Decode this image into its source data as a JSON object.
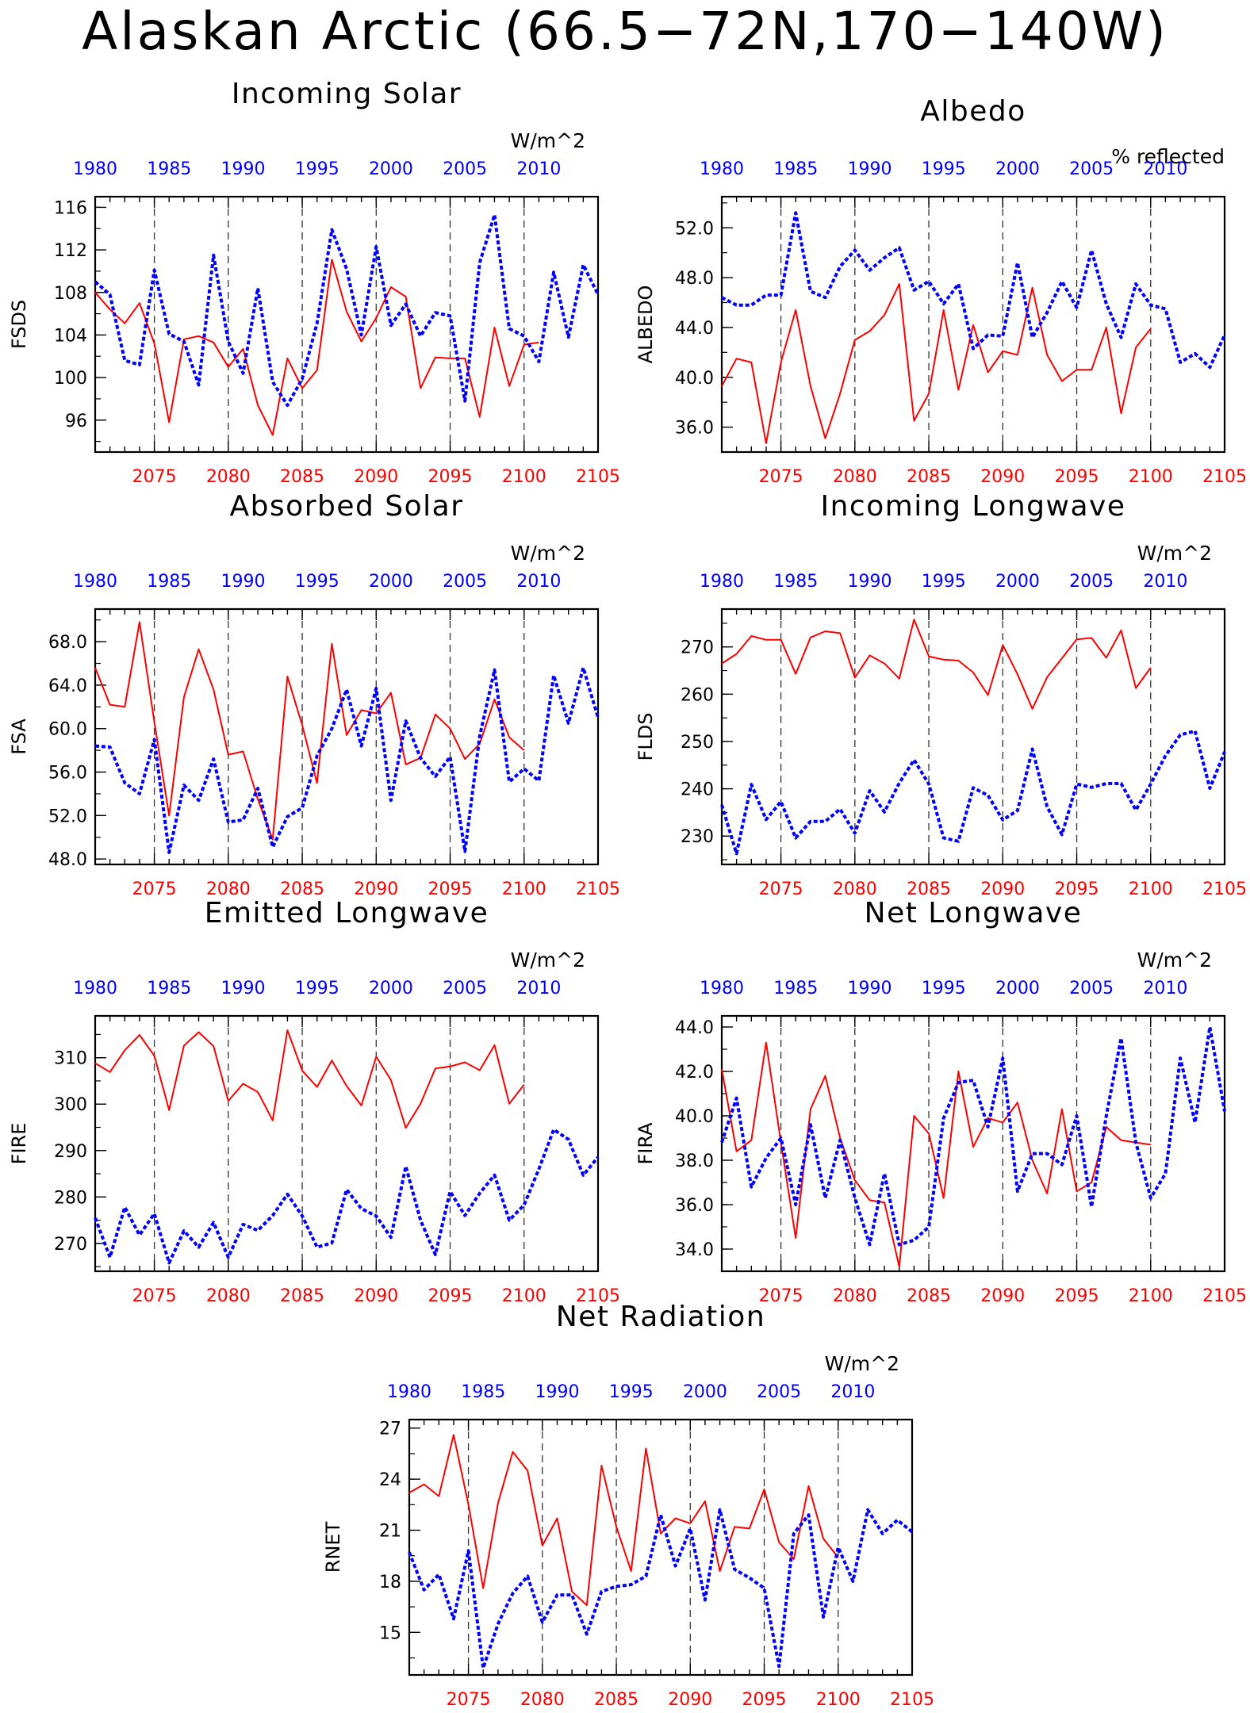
{
  "figure_title": "Alaskan Arctic (66.5−72N,170−140W)",
  "colors": {
    "future": "#ff0000",
    "historical": "#0000ff",
    "frame": "#000000"
  },
  "chart_data": [
    {
      "type": "line",
      "title": "Incoming Solar",
      "ylabel": "FSDS",
      "units": "W/m^2",
      "ylim": [
        93,
        117
      ],
      "yticks": [
        96,
        100,
        104,
        108,
        112,
        116
      ],
      "ytick_labels": [
        "96",
        "100",
        "104",
        "108",
        "112",
        "116"
      ],
      "x_bottom": {
        "start": 2071,
        "end": 2105,
        "ticks": [
          "2075",
          "2080",
          "2085",
          "2090",
          "2095",
          "2100",
          "2105"
        ]
      },
      "x_top": {
        "ticks": [
          "1980",
          "1985",
          "1990",
          "1995",
          "2000",
          "2005",
          "2010"
        ]
      },
      "series": [
        {
          "values": [
            108.0,
            106.4,
            105.1,
            107.0,
            103.2,
            95.8,
            103.6,
            103.9,
            103.3,
            101.0,
            102.7,
            97.4,
            94.6,
            101.8,
            99.0,
            100.7,
            111.1,
            106.2,
            103.4,
            105.6,
            108.5,
            107.6,
            99.0,
            101.9,
            101.8,
            101.8,
            96.3,
            104.7,
            99.2,
            103.1,
            103.3
          ]
        },
        {
          "values": [
            109.0,
            107.8,
            101.6,
            101.2,
            110.1,
            104.1,
            103.4,
            99.3,
            111.5,
            103.4,
            100.4,
            108.4,
            99.6,
            97.4,
            99.9,
            105.1,
            113.9,
            110.2,
            104.0,
            112.3,
            104.9,
            106.9,
            103.9,
            106.1,
            105.8,
            97.8,
            110.8,
            115.3,
            104.6,
            103.9,
            101.5,
            109.9,
            103.8,
            110.6,
            107.8
          ]
        }
      ]
    },
    {
      "type": "line",
      "title": "Albedo",
      "ylabel": "ALBEDO",
      "units": "% reflected",
      "ylim": [
        34.0,
        54.5
      ],
      "yticks": [
        36.0,
        40.0,
        44.0,
        48.0,
        52.0
      ],
      "ytick_labels": [
        "36.0",
        "40.0",
        "44.0",
        "48.0",
        "52.0"
      ],
      "x_bottom": {
        "start": 2071,
        "end": 2105,
        "ticks": [
          "2075",
          "2080",
          "2085",
          "2090",
          "2095",
          "2100",
          "2105"
        ]
      },
      "x_top": {
        "ticks": [
          "1980",
          "1985",
          "1990",
          "1995",
          "2000",
          "2005",
          "2010"
        ]
      },
      "series": [
        {
          "values": [
            39.3,
            41.5,
            41.2,
            34.7,
            41.2,
            45.4,
            39.3,
            35.1,
            38.7,
            43.0,
            43.7,
            45.0,
            47.5,
            36.5,
            38.7,
            45.4,
            39.0,
            44.2,
            40.4,
            42.1,
            41.8,
            47.2,
            41.8,
            39.7,
            40.6,
            40.6,
            44.0,
            37.1,
            42.4,
            43.9
          ]
        },
        {
          "values": [
            46.4,
            45.8,
            45.8,
            46.6,
            46.6,
            53.2,
            46.9,
            46.4,
            48.9,
            50.2,
            48.6,
            49.6,
            50.4,
            47.0,
            47.7,
            45.9,
            47.5,
            42.3,
            43.4,
            43.3,
            49.2,
            43.2,
            45.2,
            47.7,
            45.6,
            50.2,
            45.9,
            43.2,
            47.5,
            45.8,
            45.5,
            41.2,
            41.9,
            40.8,
            43.4
          ]
        }
      ]
    },
    {
      "type": "line",
      "title": "Absorbed Solar",
      "ylabel": "FSA",
      "units": "W/m^2",
      "ylim": [
        47.5,
        71.0
      ],
      "yticks": [
        48.0,
        52.0,
        56.0,
        60.0,
        64.0,
        68.0
      ],
      "ytick_labels": [
        "48.0",
        "52.0",
        "56.0",
        "60.0",
        "64.0",
        "68.0"
      ],
      "x_bottom": {
        "start": 2071,
        "end": 2105,
        "ticks": [
          "2075",
          "2080",
          "2085",
          "2090",
          "2095",
          "2100",
          "2105"
        ]
      },
      "x_top": {
        "ticks": [
          "1980",
          "1985",
          "1990",
          "1995",
          "2000",
          "2005",
          "2010"
        ]
      },
      "series": [
        {
          "values": [
            65.6,
            62.2,
            62.0,
            69.8,
            60.6,
            52.0,
            62.9,
            67.3,
            63.6,
            57.6,
            57.9,
            53.5,
            49.8,
            64.8,
            60.3,
            55.0,
            67.8,
            59.4,
            61.7,
            61.4,
            63.3,
            56.7,
            57.3,
            61.3,
            60.0,
            57.2,
            58.6,
            62.7,
            59.2,
            58.0
          ]
        },
        {
          "values": [
            58.4,
            58.3,
            55.0,
            54.0,
            59.0,
            48.6,
            54.8,
            53.4,
            57.2,
            51.4,
            51.6,
            54.5,
            49.1,
            51.9,
            52.7,
            57.5,
            60.0,
            63.6,
            58.4,
            63.7,
            53.4,
            60.7,
            57.3,
            55.6,
            57.4,
            48.7,
            59.3,
            65.4,
            55.1,
            56.3,
            55.2,
            64.9,
            60.5,
            65.6,
            61.0
          ]
        }
      ]
    },
    {
      "type": "line",
      "title": "Incoming Longwave",
      "ylabel": "FLDS",
      "units": "W/m^2",
      "ylim": [
        224,
        278
      ],
      "yticks": [
        230,
        240,
        250,
        260,
        270
      ],
      "ytick_labels": [
        "230",
        "240",
        "250",
        "260",
        "270"
      ],
      "x_bottom": {
        "start": 2071,
        "end": 2105,
        "ticks": [
          "2075",
          "2080",
          "2085",
          "2090",
          "2095",
          "2100",
          "2105"
        ]
      },
      "x_top": {
        "ticks": [
          "1980",
          "1985",
          "1990",
          "1995",
          "2000",
          "2005",
          "2010"
        ]
      },
      "series": [
        {
          "values": [
            266.5,
            268.5,
            272.3,
            271.5,
            271.5,
            264.3,
            272.0,
            273.3,
            272.9,
            263.5,
            268.2,
            266.5,
            263.3,
            275.8,
            268.0,
            267.3,
            267.1,
            264.6,
            259.8,
            270.4,
            264.2,
            256.9,
            263.6,
            267.6,
            271.6,
            271.9,
            267.7,
            273.5,
            261.3,
            265.6
          ]
        },
        {
          "values": [
            236.6,
            226.3,
            240.9,
            233.5,
            237.3,
            229.6,
            233.1,
            233.1,
            235.7,
            230.6,
            239.6,
            235.1,
            241.2,
            246.1,
            241.0,
            229.6,
            228.9,
            240.2,
            238.6,
            233.4,
            235.4,
            248.4,
            236.2,
            230.3,
            241.0,
            240.3,
            241.1,
            241.1,
            235.5,
            241.0,
            247.0,
            251.4,
            252.2,
            240.1,
            247.8
          ]
        }
      ]
    },
    {
      "type": "line",
      "title": "Emitted Longwave",
      "ylabel": "FIRE",
      "units": "W/m^2",
      "ylim": [
        264,
        319
      ],
      "yticks": [
        270,
        280,
        290,
        300,
        310
      ],
      "ytick_labels": [
        "270",
        "280",
        "290",
        "300",
        "310"
      ],
      "x_bottom": {
        "start": 2071,
        "end": 2105,
        "ticks": [
          "2075",
          "2080",
          "2085",
          "2090",
          "2095",
          "2100",
          "2105"
        ]
      },
      "x_top": {
        "ticks": [
          "1980",
          "1985",
          "1990",
          "1995",
          "2000",
          "2005",
          "2010"
        ]
      },
      "series": [
        {
          "values": [
            308.8,
            306.9,
            311.6,
            314.9,
            310.4,
            298.7,
            312.6,
            315.5,
            312.5,
            300.7,
            304.4,
            302.6,
            296.5,
            315.9,
            307.2,
            303.7,
            309.4,
            303.9,
            299.7,
            310.2,
            305.2,
            294.9,
            300.1,
            307.7,
            308.1,
            309.0,
            307.3,
            312.7,
            300.1,
            304.2
          ]
        },
        {
          "values": [
            275.5,
            267.0,
            277.8,
            271.8,
            276.4,
            265.8,
            272.7,
            269.2,
            274.5,
            267.0,
            274.1,
            272.8,
            276.0,
            280.6,
            275.9,
            269.2,
            270.1,
            281.6,
            277.5,
            275.9,
            271.3,
            286.6,
            275.0,
            267.6,
            281.2,
            276.0,
            280.8,
            284.7,
            275.0,
            278.3,
            286.0,
            294.5,
            292.4,
            284.7,
            288.6
          ]
        }
      ]
    },
    {
      "type": "line",
      "title": "Net Longwave",
      "ylabel": "FIRA",
      "units": "W/m^2",
      "ylim": [
        33.0,
        44.5
      ],
      "yticks": [
        34.0,
        36.0,
        38.0,
        40.0,
        42.0,
        44.0
      ],
      "ytick_labels": [
        "34.0",
        "36.0",
        "38.0",
        "40.0",
        "42.0",
        "44.0"
      ],
      "x_bottom": {
        "start": 2071,
        "end": 2105,
        "ticks": [
          "2075",
          "2080",
          "2085",
          "2090",
          "2095",
          "2100",
          "2105"
        ]
      },
      "x_top": {
        "ticks": [
          "1980",
          "1985",
          "1990",
          "1995",
          "2000",
          "2005",
          "2010"
        ]
      },
      "series": [
        {
          "values": [
            42.1,
            38.4,
            38.9,
            43.3,
            38.8,
            34.5,
            40.3,
            41.8,
            39.0,
            37.1,
            36.2,
            36.1,
            33.2,
            40.0,
            39.2,
            36.3,
            42.0,
            38.6,
            39.9,
            39.7,
            40.6,
            38.0,
            36.5,
            40.3,
            36.6,
            37.0,
            39.5,
            38.9,
            38.8,
            38.7
          ]
        },
        {
          "values": [
            38.8,
            40.8,
            36.8,
            38.1,
            39.0,
            36.0,
            39.6,
            36.3,
            38.9,
            36.3,
            34.2,
            37.4,
            34.2,
            34.4,
            35.0,
            39.9,
            41.5,
            41.6,
            39.5,
            42.6,
            36.6,
            38.3,
            38.3,
            37.8,
            40.0,
            35.9,
            40.0,
            43.5,
            38.8,
            36.3,
            37.4,
            42.6,
            39.7,
            44.0,
            40.2
          ]
        }
      ]
    },
    {
      "type": "line",
      "title": "Net Radiation",
      "ylabel": "RNET",
      "units": "W/m^2",
      "ylim": [
        12.5,
        27.5
      ],
      "yticks": [
        15,
        18,
        21,
        24,
        27
      ],
      "ytick_labels": [
        "15",
        "18",
        "21",
        "24",
        "27"
      ],
      "x_bottom": {
        "start": 2071,
        "end": 2105,
        "ticks": [
          "2075",
          "2080",
          "2085",
          "2090",
          "2095",
          "2100",
          "2105"
        ]
      },
      "x_top": {
        "ticks": [
          "1980",
          "1985",
          "1990",
          "1995",
          "2000",
          "2005",
          "2010"
        ]
      },
      "series": [
        {
          "values": [
            23.2,
            23.7,
            23.0,
            26.6,
            22.5,
            17.6,
            22.6,
            25.6,
            24.5,
            20.1,
            21.7,
            17.4,
            16.6,
            24.8,
            21.2,
            18.6,
            25.8,
            20.8,
            21.7,
            21.4,
            22.7,
            18.6,
            21.2,
            21.1,
            23.4,
            20.3,
            19.3,
            23.6,
            20.5,
            19.4
          ]
        },
        {
          "values": [
            19.7,
            17.5,
            18.4,
            15.8,
            19.8,
            12.9,
            15.5,
            17.3,
            18.3,
            15.6,
            17.2,
            17.2,
            14.9,
            17.4,
            17.7,
            17.8,
            18.3,
            21.9,
            18.9,
            21.1,
            16.9,
            22.2,
            18.7,
            18.2,
            17.6,
            13.0,
            20.8,
            21.9,
            15.9,
            20.0,
            18.0,
            22.2,
            20.8,
            21.6,
            20.9
          ]
        }
      ]
    }
  ]
}
